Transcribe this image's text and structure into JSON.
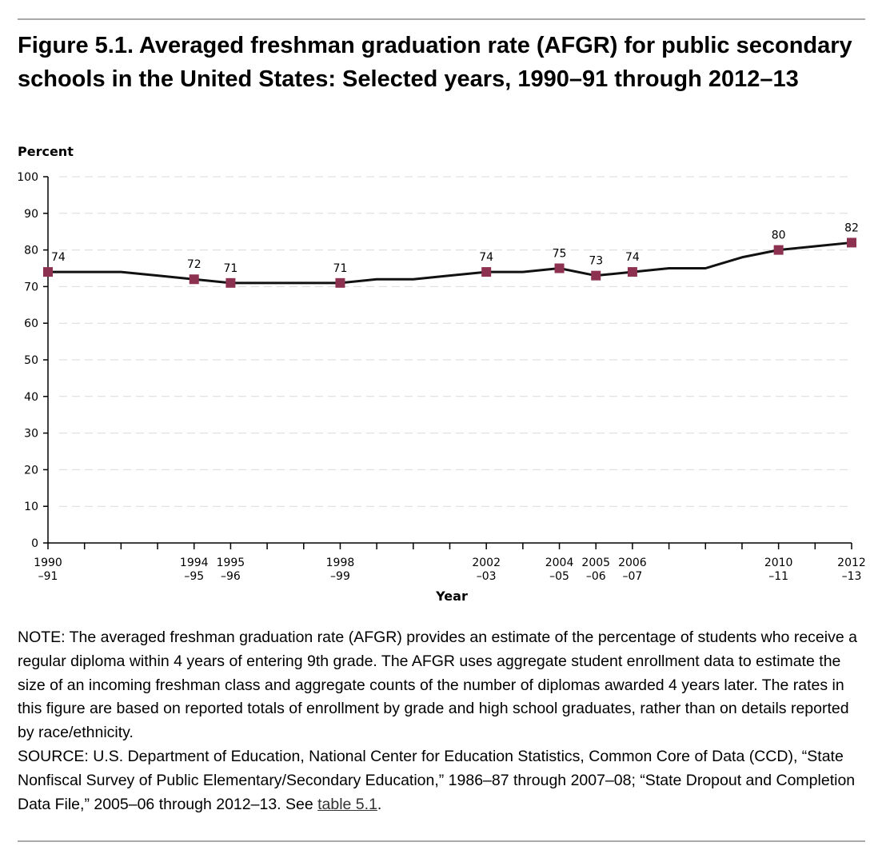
{
  "figure": {
    "title": "Figure 5.1. Averaged freshman graduation rate (AFGR) for public secondary schools in the United States: Selected years, 1990–91 through 2012–13"
  },
  "colors": {
    "line": "#111111",
    "marker": "#8c3150",
    "grid": "#d9d9d9",
    "axis": "#000000",
    "rule": "#aaaaaa"
  },
  "chart_data": {
    "type": "line",
    "ylabel": "Percent",
    "xlabel": "Year",
    "ylim": [
      0,
      100
    ],
    "yticks": [
      0,
      10,
      20,
      30,
      40,
      50,
      60,
      70,
      80,
      90,
      100
    ],
    "grid": true,
    "x_years": [
      1990,
      1991,
      1992,
      1993,
      1994,
      1995,
      1996,
      1997,
      1998,
      1999,
      2000,
      2001,
      2002,
      2003,
      2004,
      2005,
      2006,
      2007,
      2008,
      2009,
      2010,
      2011,
      2012
    ],
    "series": [
      {
        "name": "AFGR",
        "values": [
          74,
          74,
          74,
          73,
          72,
          71,
          71,
          71,
          71,
          72,
          72,
          73,
          74,
          74,
          75,
          73,
          74,
          75,
          75,
          78,
          80,
          81,
          82
        ]
      }
    ],
    "labeled_points": [
      {
        "year": 1990,
        "value": 74,
        "label": "74",
        "tick1": "1990",
        "tick2": "–91"
      },
      {
        "year": 1994,
        "value": 72,
        "label": "72",
        "tick1": "1994",
        "tick2": "–95"
      },
      {
        "year": 1995,
        "value": 71,
        "label": "71",
        "tick1": "1995",
        "tick2": "–96"
      },
      {
        "year": 1998,
        "value": 71,
        "label": "71",
        "tick1": "1998",
        "tick2": "–99"
      },
      {
        "year": 2002,
        "value": 74,
        "label": "74",
        "tick1": "2002",
        "tick2": "–03"
      },
      {
        "year": 2004,
        "value": 75,
        "label": "75",
        "tick1": "2004",
        "tick2": "–05"
      },
      {
        "year": 2005,
        "value": 73,
        "label": "73",
        "tick1": "2005",
        "tick2": "–06"
      },
      {
        "year": 2006,
        "value": 74,
        "label": "74",
        "tick1": "2006",
        "tick2": "–07"
      },
      {
        "year": 2010,
        "value": 80,
        "label": "80",
        "tick1": "2010",
        "tick2": "–11"
      },
      {
        "year": 2012,
        "value": 82,
        "label": "82",
        "tick1": "2012",
        "tick2": "–13"
      }
    ]
  },
  "notes": {
    "note": "NOTE: The averaged freshman graduation rate (AFGR) provides an estimate of the percentage of students who receive a regular diploma within 4 years of entering 9th grade. The AFGR uses aggregate student enrollment data to estimate the size of an incoming freshman class and aggregate counts of the number of diplomas awarded 4 years later. The rates in this figure are based on reported totals of enrollment by grade and high school graduates, rather than on details reported by race/ethnicity.",
    "source_prefix": "SOURCE: U.S. Department of Education, National Center for Education Statistics, Common Core of Data (CCD), “State Nonfiscal Survey of Public Elementary/Secondary Education,” 1986–87 through 2007–08; “State Dropout and Completion Data File,” 2005–06 through 2012–13. See ",
    "source_link": "table 5.1",
    "source_suffix": "."
  }
}
